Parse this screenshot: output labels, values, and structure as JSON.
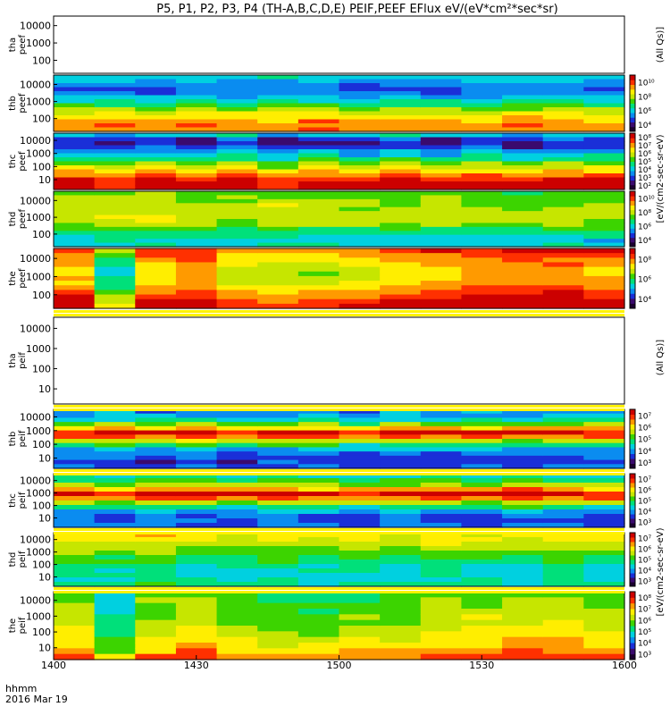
{
  "title": "P5, P1, P2, P3, P4 (TH-A,B,C,D,E) PEIF,PEEF EFlux eV/(eV*cm²*sec*sr)",
  "footer": {
    "line1": "hhmm",
    "line2": "2016 Mar 19"
  },
  "colors": {
    "colormap": [
      "#1b0030",
      "#3a0a6e",
      "#1a2fd8",
      "#0a8cf0",
      "#00d0e0",
      "#00e07a",
      "#3cd400",
      "#c6e600",
      "#ffee00",
      "#ff9a00",
      "#ff3000",
      "#cc0000"
    ],
    "banner": [
      "#fff200",
      "#ffffff"
    ],
    "frame": "#000000"
  },
  "chart_data": [
    {
      "type": "heatmap",
      "probe": "tha",
      "species": "peef",
      "ylabel": [
        "tha",
        "peef"
      ],
      "yticks": [
        "10000",
        "1000",
        "100"
      ],
      "colorbar_ticks": [],
      "data": null
    },
    {
      "type": "heatmap",
      "probe": "thb",
      "species": "peef",
      "ylabel": [
        "thb",
        "peef"
      ],
      "yticks": [
        "10000",
        "1000",
        "100"
      ],
      "colorbar_ticks": [
        "10¹⁰",
        "10⁸",
        "10⁶",
        "10⁴"
      ],
      "profile": [
        4.2,
        3.6,
        3.0,
        2.6,
        2.8,
        3.6,
        4.6,
        5.6,
        6.6,
        7.4,
        8.2,
        8.8,
        9.2,
        9.0
      ],
      "timevar": [
        0.0,
        0.2,
        -0.3,
        0.4,
        -0.2,
        0.1,
        0.3,
        -0.4,
        0.2,
        0.0,
        -0.3,
        0.2,
        0.1,
        -0.2
      ]
    },
    {
      "type": "heatmap",
      "probe": "thc",
      "species": "peef",
      "ylabel": [
        "thc",
        "peef"
      ],
      "yticks": [
        "10000",
        "1000",
        "100",
        "10"
      ],
      "colorbar_ticks": [
        "10⁸",
        "10⁷",
        "10⁶",
        "10⁵",
        "10⁴",
        "10³",
        "10²"
      ],
      "profile": [
        4.0,
        2.0,
        1.5,
        2.2,
        3.2,
        4.2,
        5.2,
        6.4,
        7.4,
        8.4,
        9.4,
        10.5,
        11.2,
        11.0
      ],
      "timevar": [
        0.2,
        -0.6,
        0.4,
        -0.2,
        0.5,
        -0.8,
        0.3,
        -0.4,
        0.6,
        -0.3,
        0.2,
        -0.5,
        0.4,
        0.1
      ]
    },
    {
      "type": "heatmap",
      "probe": "thd",
      "species": "peef",
      "ylabel": [
        "thd",
        "peef"
      ],
      "yticks": [
        "10000",
        "1000",
        "100"
      ],
      "colorbar_ticks": [
        "10¹⁰",
        "10⁸",
        "10⁶",
        "10⁴"
      ],
      "profile": [
        5.5,
        5.8,
        6.0,
        6.2,
        6.4,
        6.5,
        6.6,
        6.4,
        6.0,
        5.2,
        4.4,
        3.8,
        3.4,
        3.8
      ],
      "timevar": [
        0.8,
        1.0,
        1.1,
        0.6,
        0.4,
        0.9,
        0.5,
        0.3,
        0.4,
        0.6,
        0.5,
        0.2,
        0.5,
        0.3
      ]
    },
    {
      "type": "heatmap",
      "probe": "the",
      "species": "peef",
      "ylabel": [
        "the",
        "peef"
      ],
      "yticks": [
        "10000",
        "1000",
        "100"
      ],
      "colorbar_ticks": [
        "10⁸",
        "10⁶",
        "10⁴"
      ],
      "profile": [
        9.6,
        9.0,
        8.4,
        8.0,
        7.8,
        7.6,
        7.8,
        8.2,
        8.6,
        9.2,
        9.8,
        10.4,
        10.8
      ],
      "timevar": [
        0.6,
        -3.0,
        0.4,
        0.8,
        -0.6,
        -1.0,
        -0.8,
        -0.4,
        0.2,
        0.6,
        1.0,
        1.4,
        1.2,
        0.8
      ]
    },
    {
      "type": "heatmap",
      "probe": "tha",
      "species": "peif",
      "ylabel": [
        "tha",
        "peif"
      ],
      "yticks": [
        "10000",
        "1000",
        "100",
        "10"
      ],
      "colorbar_ticks": [],
      "data": null
    },
    {
      "type": "heatmap",
      "probe": "thb",
      "species": "peif",
      "ylabel": [
        "thb",
        "peif"
      ],
      "yticks": [
        "10000",
        "1000",
        "100",
        "10"
      ],
      "colorbar_ticks": [
        "10⁷",
        "10⁶",
        "10⁵",
        "10⁴",
        "10³"
      ],
      "profile": [
        3.0,
        3.5,
        4.5,
        6.2,
        8.6,
        10.6,
        9.6,
        7.0,
        5.0,
        3.6,
        2.6,
        2.2,
        2.0,
        2.4
      ],
      "timevar": [
        0.0,
        0.3,
        -0.2,
        0.4,
        -0.3,
        0.2,
        0.1,
        -0.4,
        0.3,
        -0.1,
        0.2,
        -0.3,
        0.1,
        0.2
      ]
    },
    {
      "type": "heatmap",
      "probe": "thc",
      "species": "peif",
      "ylabel": [
        "thc",
        "peif"
      ],
      "yticks": [
        "10000",
        "1000",
        "100",
        "10"
      ],
      "colorbar_ticks": [
        "10⁷",
        "10⁶",
        "10⁵",
        "10⁴",
        "10³"
      ],
      "profile": [
        4.4,
        5.4,
        6.6,
        8.8,
        10.8,
        9.4,
        6.8,
        4.8,
        3.4,
        2.4,
        2.2,
        2.6
      ],
      "timevar": [
        0.2,
        -0.3,
        0.4,
        0.1,
        -0.2,
        0.3,
        0.0,
        -0.4,
        0.2,
        0.1,
        -0.3,
        0.4,
        0.0,
        -0.2
      ]
    },
    {
      "type": "heatmap",
      "probe": "thd",
      "species": "peif",
      "ylabel": [
        "thd",
        "peif"
      ],
      "yticks": [
        "10000",
        "1000",
        "100",
        "10"
      ],
      "colorbar_ticks": [
        "10⁷",
        "10⁶",
        "10⁵",
        "10⁴",
        "10³"
      ],
      "profile": [
        7.8,
        7.6,
        7.2,
        6.6,
        6.0,
        5.4,
        5.0,
        4.6,
        4.4,
        4.2,
        4.4,
        5.0
      ],
      "timevar": [
        0.4,
        0.2,
        0.6,
        0.0,
        -0.3,
        0.3,
        -0.2,
        0.2,
        -0.4,
        0.4,
        0.0,
        -0.2,
        0.3,
        0.1
      ]
    },
    {
      "type": "heatmap",
      "probe": "the",
      "species": "peif",
      "ylabel": [
        "the",
        "peif"
      ],
      "yticks": [
        "10000",
        "1000",
        "100",
        "10"
      ],
      "colorbar_ticks": [
        "10⁸",
        "10⁷",
        "10⁶",
        "10⁵",
        "10⁴",
        "10³"
      ],
      "profile": [
        5.6,
        6.0,
        6.2,
        6.4,
        6.6,
        6.8,
        7.0,
        7.4,
        7.6,
        8.0,
        8.6,
        9.6
      ],
      "timevar": [
        0.4,
        -1.8,
        0.2,
        0.6,
        0.0,
        -0.4,
        -0.6,
        -0.2,
        -0.4,
        0.4,
        0.6,
        0.8,
        0.6,
        0.4
      ]
    }
  ],
  "x_axis": {
    "ticks": [
      "1400",
      "1430",
      "1500",
      "1530",
      "1600"
    ],
    "range": [
      "1400",
      "1600"
    ],
    "n_time_bins": 14
  },
  "colorbar_units": [
    {
      "text": "(All Qs)]"
    },
    {
      "text": "[eV/(cm2-sec-sr-eV)"
    },
    {
      "text": "(All Qs)]"
    },
    {
      "text": "[eV/(cm2-sec-sr-eV)"
    }
  ]
}
